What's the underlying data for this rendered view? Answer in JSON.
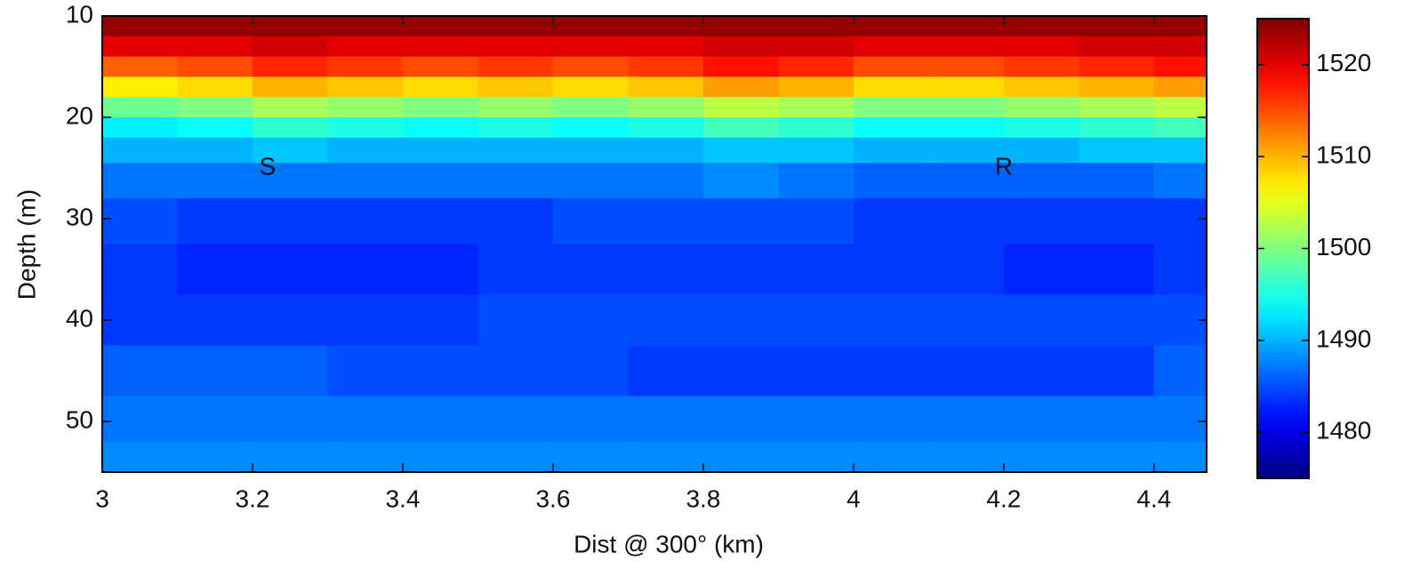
{
  "chart_data": {
    "type": "heatmap",
    "xlabel": "Dist @ 300° (km)",
    "ylabel": "Depth (m)",
    "x": [
      3.05,
      3.15,
      3.25,
      3.35,
      3.45,
      3.55,
      3.65,
      3.75,
      3.85,
      3.95,
      4.05,
      4.15,
      4.25,
      4.35,
      4.45
    ],
    "y": [
      11,
      13,
      15,
      17,
      19,
      21,
      23,
      26,
      30,
      35,
      40,
      45,
      50,
      54
    ],
    "z": [
      [
        1524,
        1524,
        1524,
        1524,
        1524,
        1524,
        1524,
        1524,
        1524,
        1524,
        1524,
        1524,
        1524,
        1524,
        1524
      ],
      [
        1520,
        1520,
        1521,
        1520,
        1520,
        1520,
        1520,
        1520,
        1521,
        1521,
        1520,
        1520,
        1520,
        1521,
        1521
      ],
      [
        1514,
        1515,
        1517,
        1516,
        1515,
        1516,
        1515,
        1516,
        1518,
        1517,
        1515,
        1515,
        1516,
        1517,
        1518
      ],
      [
        1507,
        1508,
        1510,
        1509,
        1508,
        1509,
        1508,
        1509,
        1511,
        1510,
        1508,
        1508,
        1509,
        1510,
        1511
      ],
      [
        1499,
        1500,
        1502,
        1501,
        1500,
        1501,
        1500,
        1501,
        1503,
        1502,
        1500,
        1500,
        1501,
        1502,
        1503
      ],
      [
        1493,
        1494,
        1496,
        1495,
        1494,
        1495,
        1494,
        1495,
        1497,
        1496,
        1494,
        1494,
        1495,
        1496,
        1497
      ],
      [
        1490,
        1490,
        1491,
        1490,
        1490,
        1490,
        1490,
        1490,
        1491,
        1491,
        1490,
        1490,
        1490,
        1491,
        1491
      ],
      [
        1487,
        1487,
        1487,
        1487,
        1487,
        1487,
        1487,
        1487,
        1488,
        1487,
        1486,
        1486,
        1486,
        1486,
        1487
      ],
      [
        1485,
        1484,
        1484,
        1484,
        1484,
        1484,
        1485,
        1485,
        1485,
        1485,
        1484,
        1484,
        1484,
        1484,
        1484
      ],
      [
        1484,
        1483,
        1483,
        1483,
        1483,
        1484,
        1484,
        1484,
        1484,
        1484,
        1484,
        1484,
        1483,
        1483,
        1484
      ],
      [
        1484,
        1484,
        1484,
        1484,
        1484,
        1485,
        1485,
        1485,
        1485,
        1485,
        1485,
        1485,
        1485,
        1485,
        1485
      ],
      [
        1486,
        1486,
        1486,
        1485,
        1485,
        1485,
        1485,
        1484,
        1484,
        1484,
        1484,
        1484,
        1484,
        1484,
        1486
      ],
      [
        1487,
        1487,
        1487,
        1487,
        1487,
        1487,
        1487,
        1487,
        1487,
        1487,
        1487,
        1487,
        1487,
        1487,
        1487
      ],
      [
        1488,
        1488,
        1488,
        1488,
        1488,
        1488,
        1488,
        1488,
        1488,
        1488,
        1488,
        1488,
        1488,
        1488,
        1488
      ]
    ],
    "xlim": [
      3,
      4.47
    ],
    "xticks": [
      3,
      3.2,
      3.4,
      3.6,
      3.8,
      4,
      4.2,
      4.4
    ],
    "ylim": [
      10,
      55
    ],
    "yticks": [
      10,
      20,
      30,
      40,
      50
    ],
    "y_inverted": true,
    "colormap": "jet",
    "clim": [
      1475,
      1525
    ],
    "cticks": [
      1480,
      1490,
      1500,
      1510,
      1520
    ],
    "annotations": [
      {
        "text": "S",
        "x": 3.22,
        "y": 25
      },
      {
        "text": "R",
        "x": 4.2,
        "y": 25
      }
    ]
  }
}
